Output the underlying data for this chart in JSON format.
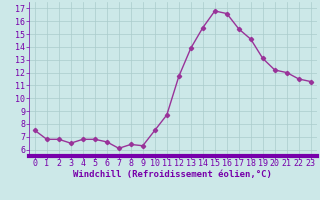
{
  "x": [
    0,
    1,
    2,
    3,
    4,
    5,
    6,
    7,
    8,
    9,
    10,
    11,
    12,
    13,
    14,
    15,
    16,
    17,
    18,
    19,
    20,
    21,
    22,
    23
  ],
  "y": [
    7.5,
    6.8,
    6.8,
    6.5,
    6.8,
    6.8,
    6.6,
    6.1,
    6.4,
    6.3,
    7.5,
    8.7,
    11.7,
    13.9,
    15.5,
    16.8,
    16.6,
    15.4,
    14.6,
    13.1,
    12.2,
    12.0,
    11.5,
    11.3
  ],
  "line_color": "#993399",
  "marker": "D",
  "marker_size": 2.2,
  "bg_color": "#cce8e8",
  "grid_color": "#aacccc",
  "xlabel": "Windchill (Refroidissement éolien,°C)",
  "xlabel_fontsize": 6.5,
  "ytick_labels": [
    "6",
    "7",
    "8",
    "9",
    "10",
    "11",
    "12",
    "13",
    "14",
    "15",
    "16",
    "17"
  ],
  "ytick_values": [
    6,
    7,
    8,
    9,
    10,
    11,
    12,
    13,
    14,
    15,
    16,
    17
  ],
  "xlim": [
    -0.5,
    23.5
  ],
  "ylim": [
    5.5,
    17.5
  ],
  "tick_fontsize": 6.0,
  "axis_label_color": "#7700aa",
  "bar_color": "#7700aa",
  "bar_height": 0.18,
  "linewidth": 1.0
}
